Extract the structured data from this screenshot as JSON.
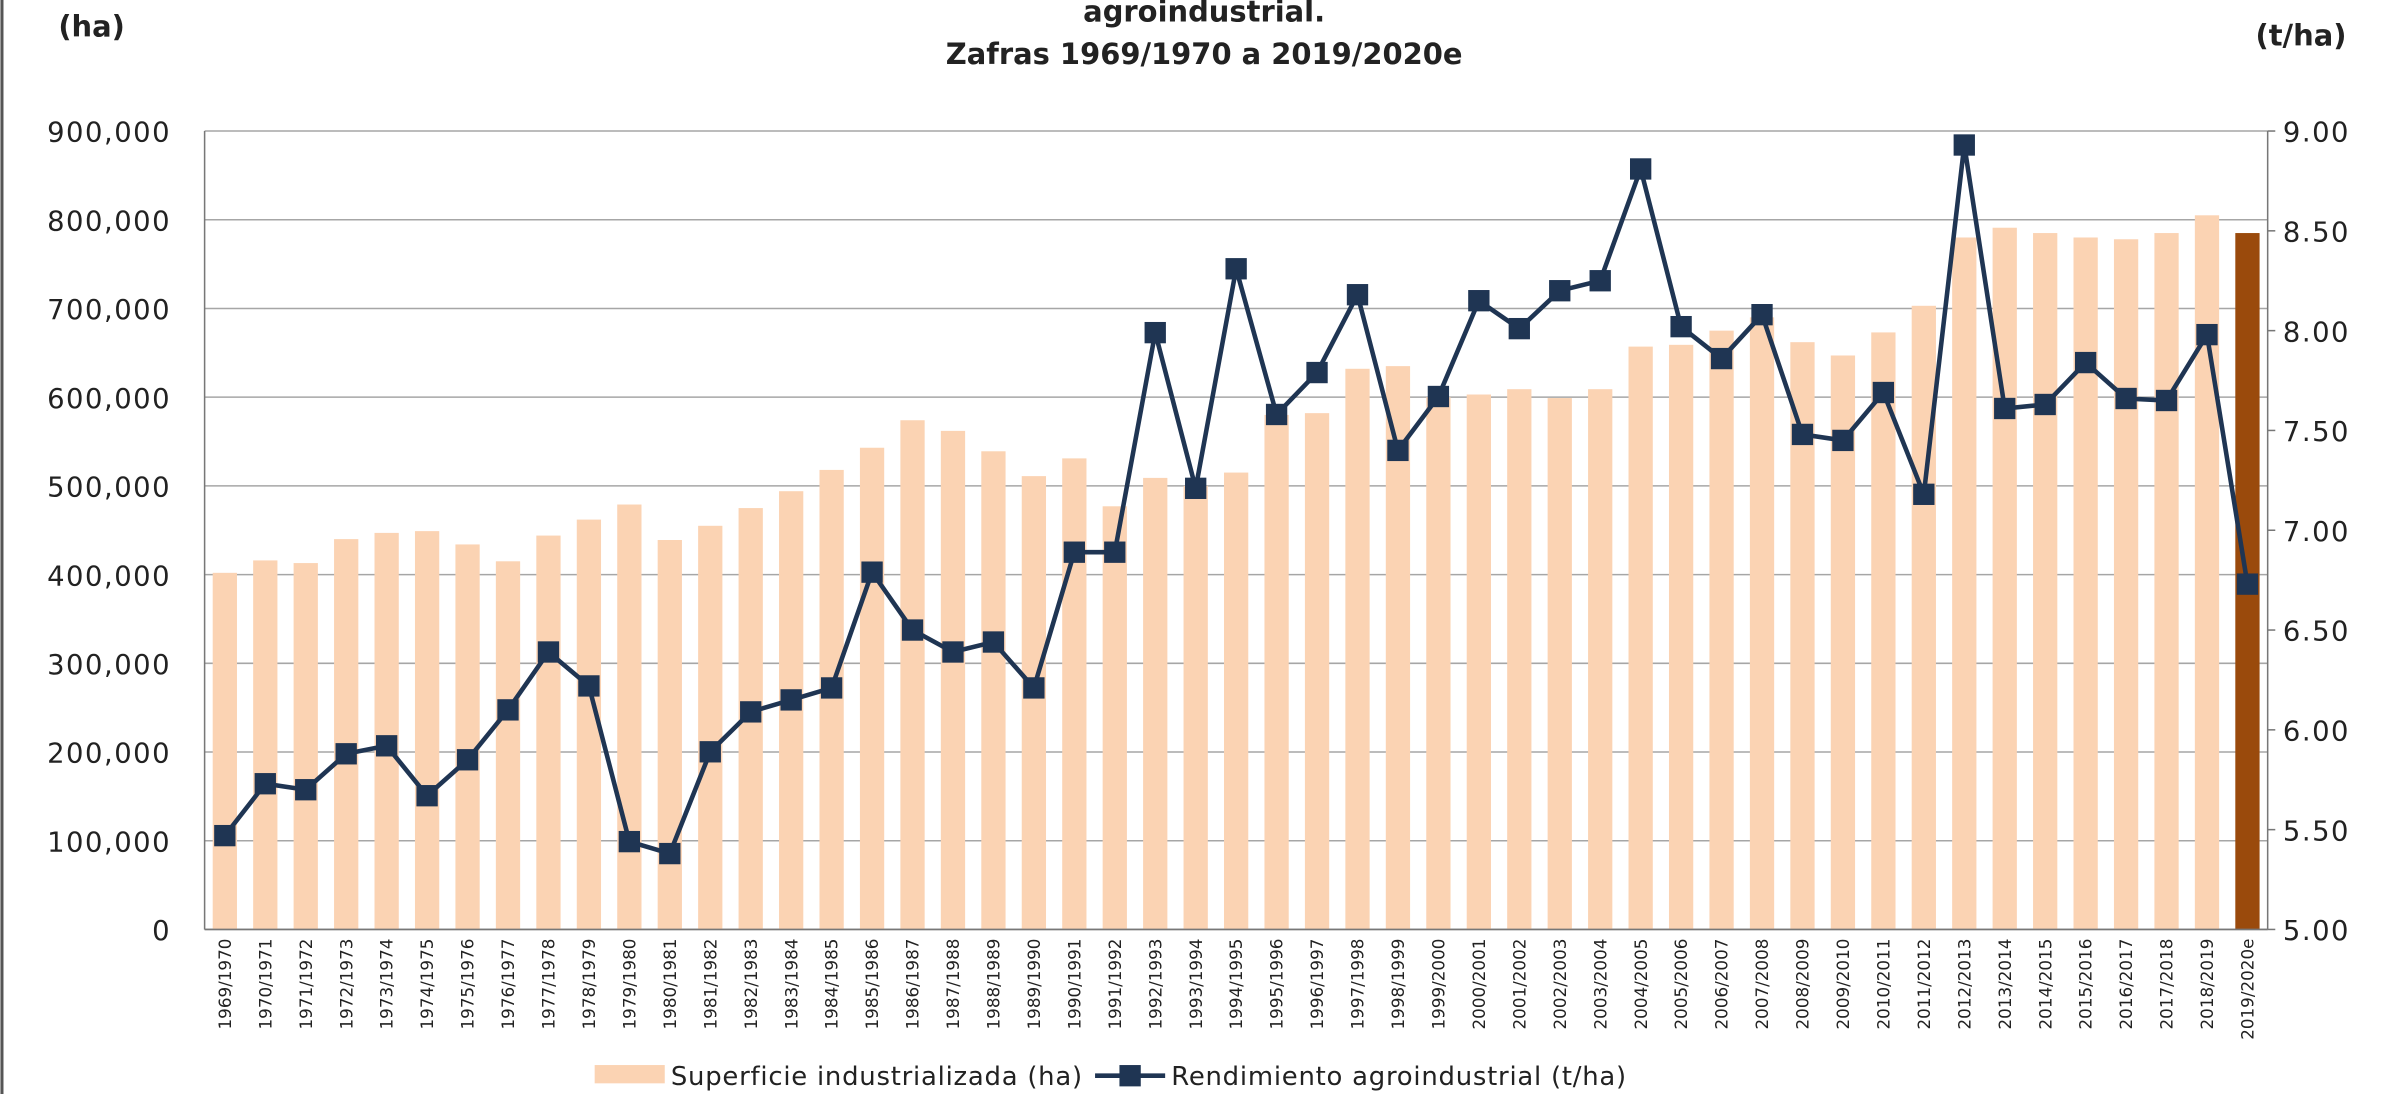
{
  "chart_data": {
    "type": "bar_line",
    "title_lines": [
      "agroindustrial.",
      "Zafras 1969/1970 a 2019/2020e"
    ],
    "y_label": "(ha)",
    "y2_label": "(t/ha)",
    "categories": [
      "1969/1970",
      "1970/1971",
      "1971/1972",
      "1972/1973",
      "1973/1974",
      "1974/1975",
      "1975/1976",
      "1976/1977",
      "1977/1978",
      "1978/1979",
      "1979/1980",
      "1980/1981",
      "1981/1982",
      "1982/1983",
      "1983/1984",
      "1984/1985",
      "1985/1986",
      "1986/1987",
      "1987/1988",
      "1988/1989",
      "1989/1990",
      "1990/1991",
      "1991/1992",
      "1992/1993",
      "1993/1994",
      "1994/1995",
      "1995/1996",
      "1996/1997",
      "1997/1998",
      "1998/1999",
      "1999/2000",
      "2000/2001",
      "2001/2002",
      "2002/2003",
      "2003/2004",
      "2004/2005",
      "2005/2006",
      "2006/2007",
      "2007/2008",
      "2008/2009",
      "2009/2010",
      "2010/2011",
      "2011/2012",
      "2012/2013",
      "2013/2014",
      "2014/2015",
      "2015/2016",
      "2016/2017",
      "2017/2018",
      "2018/2019",
      "2019/2020e"
    ],
    "ylim": [
      0,
      900000
    ],
    "yticks": [
      0,
      {
        "value": 100000,
        "label": "100,000"
      },
      {
        "value": 200000,
        "label": "200,000"
      },
      {
        "value": 300000,
        "label": "300,000"
      },
      {
        "value": 400000,
        "label": "400,000"
      },
      {
        "value": 500000,
        "label": "500,000"
      },
      {
        "value": 600000,
        "label": "600,000"
      },
      {
        "value": 700000,
        "label": "700,000"
      },
      {
        "value": 800000,
        "label": "800,000"
      },
      {
        "value": 900000,
        "label": "900,000"
      }
    ],
    "y2lim": [
      5,
      9
    ],
    "y2ticks": [
      {
        "value": 5,
        "label": "5.00"
      },
      {
        "value": 5.5,
        "label": "5.50"
      },
      {
        "value": 6,
        "label": "6.00"
      },
      {
        "value": 6.5,
        "label": "6.50"
      },
      {
        "value": 7,
        "label": "7.00"
      },
      {
        "value": 7.5,
        "label": "7.50"
      },
      {
        "value": 8,
        "label": "8.00"
      },
      {
        "value": 8.5,
        "label": "8.50"
      },
      {
        "value": 9,
        "label": "9.00"
      }
    ],
    "grid": true,
    "series": [
      {
        "name": "Superficie industrializada (ha)",
        "type": "bar",
        "color": "#fbd3b3",
        "colors": [
          "#fbd3b3",
          "#fbd3b3",
          "#fbd3b3",
          "#fbd3b3",
          "#fbd3b3",
          "#fbd3b3",
          "#fbd3b3",
          "#fbd3b3",
          "#fbd3b3",
          "#fbd3b3",
          "#fbd3b3",
          "#fbd3b3",
          "#fbd3b3",
          "#fbd3b3",
          "#fbd3b3",
          "#fbd3b3",
          "#fbd3b3",
          "#fbd3b3",
          "#fbd3b3",
          "#fbd3b3",
          "#fbd3b3",
          "#fbd3b3",
          "#fbd3b3",
          "#fbd3b3",
          "#fbd3b3",
          "#fbd3b3",
          "#fbd3b3",
          "#fbd3b3",
          "#fbd3b3",
          "#fbd3b3",
          "#fbd3b3",
          "#fbd3b3",
          "#fbd3b3",
          "#fbd3b3",
          "#fbd3b3",
          "#fbd3b3",
          "#fbd3b3",
          "#fbd3b3",
          "#fbd3b3",
          "#fbd3b3",
          "#fbd3b3",
          "#fbd3b3",
          "#fbd3b3",
          "#fbd3b3",
          "#fbd3b3",
          "#fbd3b3",
          "#fbd3b3",
          "#fbd3b3",
          "#fbd3b3",
          "#fbd3b3",
          "#9a4a0c"
        ],
        "values": [
          402000,
          416000,
          413000,
          440000,
          447000,
          449000,
          434000,
          415000,
          444000,
          462000,
          479000,
          439000,
          455000,
          475000,
          494000,
          518000,
          543000,
          574000,
          562000,
          539000,
          511000,
          531000,
          477000,
          509000,
          500000,
          515000,
          580000,
          582000,
          632000,
          635000,
          600000,
          603000,
          609000,
          599000,
          609000,
          657000,
          659000,
          675000,
          690000,
          662000,
          647000,
          673000,
          703000,
          780000,
          791000,
          785000,
          780000,
          778000,
          785000,
          805000,
          785000
        ]
      },
      {
        "name": "Rendimiento agroindustrial (t/ha)",
        "type": "line",
        "axis": "y2",
        "color": "#1f3553",
        "values": [
          5.47,
          5.73,
          5.7,
          5.88,
          5.92,
          5.67,
          5.85,
          6.1,
          6.39,
          6.22,
          5.44,
          5.38,
          5.89,
          6.09,
          6.15,
          6.21,
          6.79,
          6.5,
          6.39,
          6.44,
          6.21,
          6.89,
          6.89,
          7.99,
          7.21,
          8.31,
          7.58,
          7.79,
          8.18,
          7.4,
          7.67,
          8.15,
          8.01,
          8.2,
          8.25,
          8.81,
          8.02,
          7.86,
          8.08,
          7.48,
          7.45,
          7.69,
          7.18,
          8.93,
          7.61,
          7.63,
          7.84,
          7.66,
          7.65,
          7.98,
          6.73
        ]
      }
    ]
  }
}
